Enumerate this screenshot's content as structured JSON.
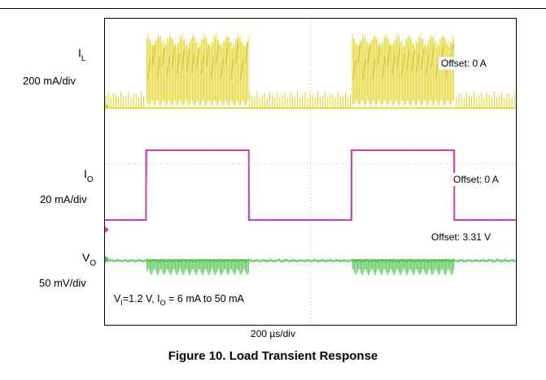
{
  "figure": {
    "caption": "Figure 10. Load Transient Response",
    "xdiv_label": "200 µs/div"
  },
  "channels": {
    "il": {
      "symbol": "I",
      "sub": "L",
      "scale": "200 mA/div",
      "offset": "Offset: 0 A",
      "color": "#e2d21a"
    },
    "io": {
      "symbol": "I",
      "sub": "O",
      "scale": "20 mA/div",
      "offset": "Offset: 0 A",
      "color": "#c446b4"
    },
    "vo": {
      "symbol": "V",
      "sub": "O",
      "scale": "50 mV/div",
      "offset": "Offset: 3.31 V",
      "color": "#4cc24a"
    }
  },
  "conditions": {
    "vi_sym": "V",
    "vi_sub": "I",
    "vi_val": "=1.2 V, ",
    "io_sym": "I",
    "io_sub": "O",
    "io_val": " = 6 mA to 50 mA"
  },
  "chart_data": {
    "type": "line",
    "x_unit": "µs",
    "x_per_div": 200,
    "x_divisions": 10,
    "xlim": [
      0,
      2000
    ],
    "grid": true,
    "series": [
      {
        "name": "I_O",
        "unit": "mA",
        "per_div": 20,
        "x": [
          0,
          200,
          200,
          700,
          700,
          1200,
          1200,
          1700,
          1700,
          2000
        ],
        "y": [
          6,
          6,
          50,
          50,
          6,
          6,
          50,
          50,
          6,
          6
        ]
      },
      {
        "name": "I_L",
        "unit": "mA",
        "per_div": 200,
        "load_steps_high": [
          [
            200,
            700
          ],
          [
            1200,
            1700
          ]
        ],
        "light_load_burst_peak": 60,
        "heavy_load_peak": 480
      },
      {
        "name": "V_O",
        "unit": "mV",
        "per_div": 50,
        "light_load_ripple_pp": 10,
        "heavy_load_ripple_pp": 60
      }
    ]
  }
}
